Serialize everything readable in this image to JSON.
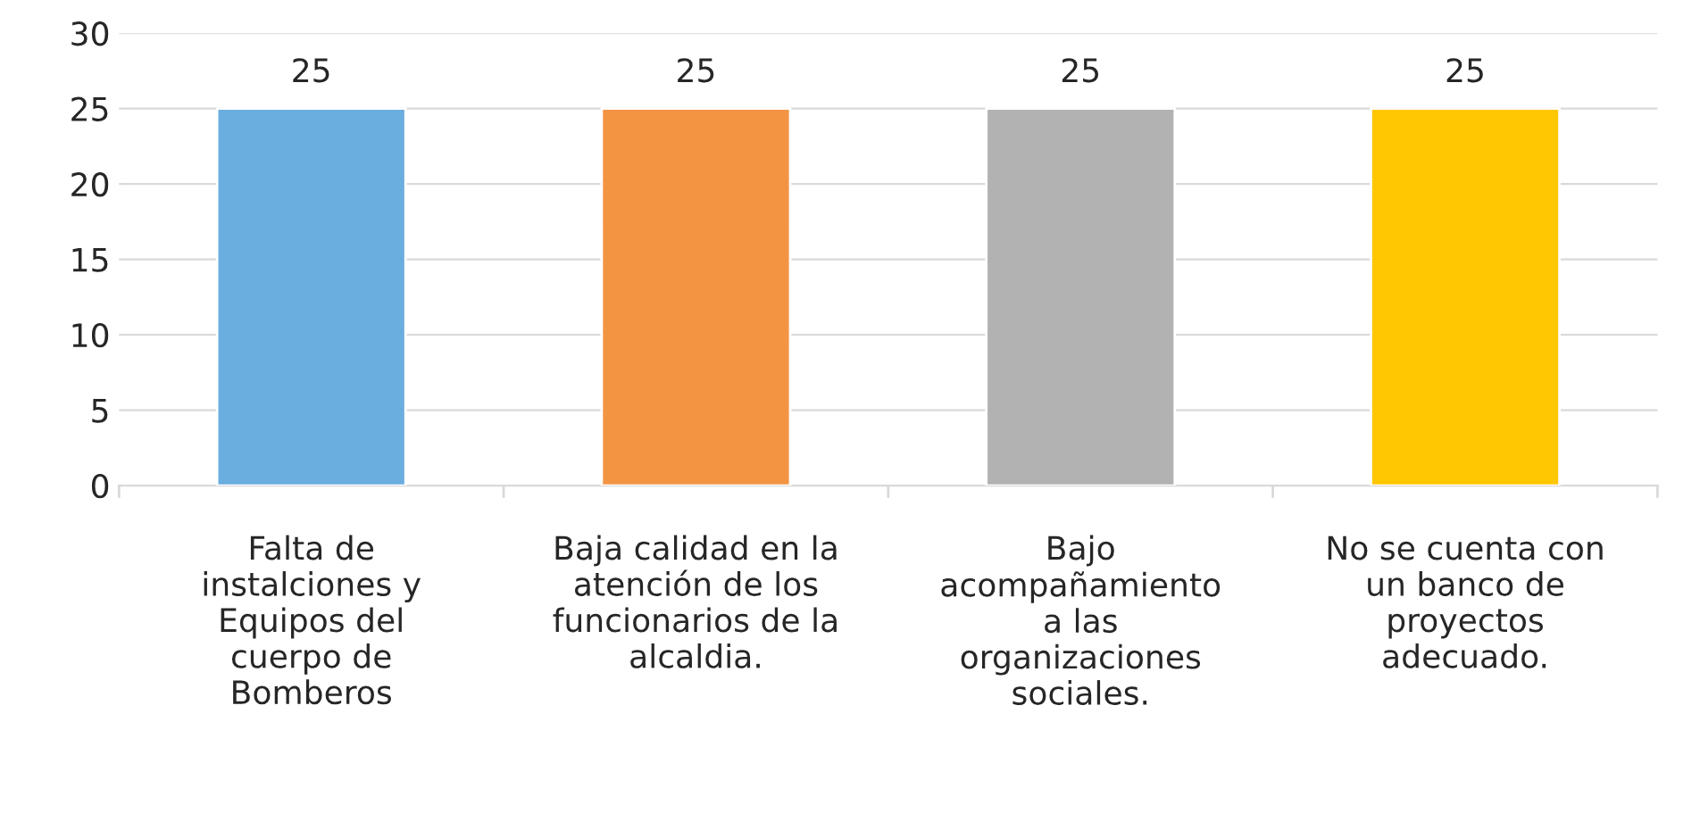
{
  "chart_data": {
    "type": "bar",
    "categories": [
      "Falta de\ninstalciones y\nEquipos del\ncuerpo de\nBomberos",
      "Baja calidad en la\natención de los\nfuncionarios de la\nalcaldia.",
      "Bajo\nacompañamiento\na las\norganizaciones\nsociales.",
      "No se cuenta con\nun banco de\nproyectos\nadecuado."
    ],
    "values": [
      25,
      25,
      25,
      25
    ],
    "colors": [
      "#6aaddf",
      "#f39443",
      "#b2b2b2",
      "#ffc602"
    ],
    "ylim": [
      0,
      30
    ],
    "yticks": [
      0,
      5,
      10,
      15,
      20,
      25,
      30
    ],
    "grid": "y",
    "data_labels": true
  }
}
